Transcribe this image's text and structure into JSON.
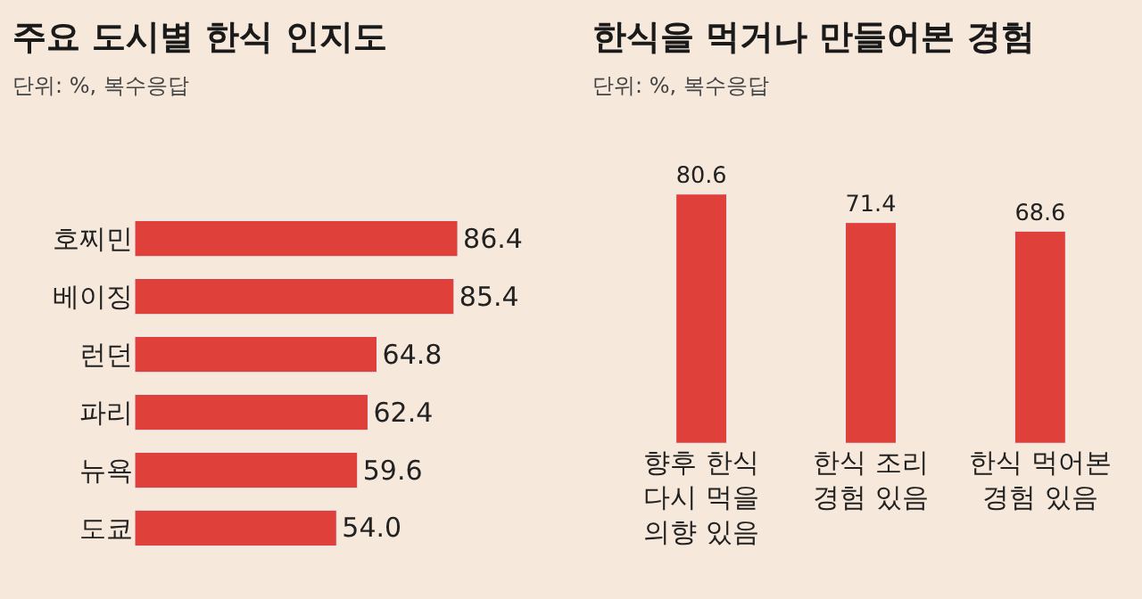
{
  "chart_data": [
    {
      "type": "bar",
      "title": "주요 도시별 한식 인지도",
      "subtitle": "단위: %, 복수응답",
      "orientation": "horizontal",
      "categories": [
        "호찌민",
        "베이징",
        "런던",
        "파리",
        "뉴욕",
        "도쿄"
      ],
      "values": [
        86.4,
        85.4,
        64.8,
        62.4,
        59.6,
        54.0
      ],
      "value_labels": [
        "86.4",
        "85.4",
        "64.8",
        "62.4",
        "59.6",
        "54.0"
      ],
      "color": "#e0403a",
      "tick_labels": "y"
    },
    {
      "type": "bar",
      "title": "한식을 먹거나 만들어본 경험",
      "subtitle": "단위: %, 복수응답",
      "categories": [
        "향후 한식\n다시 먹을\n의향 있음",
        "한식 조리\n경험 있음",
        "한식 먹어본\n경험 있음"
      ],
      "values": [
        80.6,
        71.4,
        68.6
      ],
      "value_labels": [
        "80.6",
        "71.4",
        "68.6"
      ],
      "color": "#e0403a",
      "tick_labels": "x"
    }
  ]
}
